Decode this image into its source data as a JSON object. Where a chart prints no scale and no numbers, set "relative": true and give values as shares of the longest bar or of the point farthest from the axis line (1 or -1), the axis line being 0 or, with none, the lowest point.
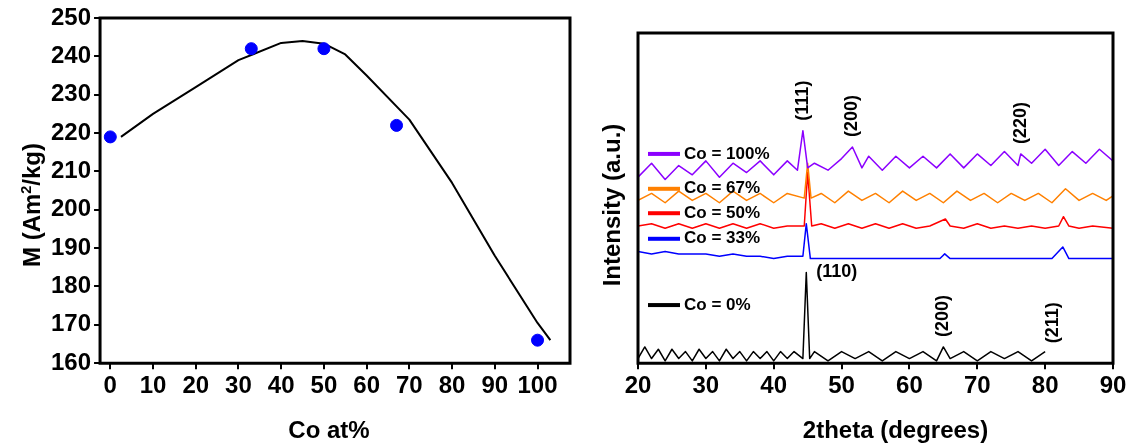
{
  "chart_data": [
    {
      "type": "scatter",
      "xlabel": "Co at%",
      "ylabel": "M (Am$^{2}$/kg)",
      "xlim": [
        -2.4,
        107.6
      ],
      "xticks": [
        0,
        10,
        20,
        30,
        40,
        50,
        60,
        70,
        80,
        90,
        100
      ],
      "ylim": [
        160,
        250
      ],
      "yticks": [
        160,
        170,
        180,
        190,
        200,
        210,
        220,
        230,
        240,
        250
      ],
      "series": [
        {
          "color": "#0000ff",
          "marker": "circle",
          "x": [
            0,
            33,
            50,
            67,
            100
          ],
          "values": [
            219,
            242,
            242,
            222,
            166
          ]
        },
        {
          "type": "line",
          "color": "#000000",
          "x": [
            2.5,
            10,
            20,
            30,
            40,
            45,
            50,
            55,
            60,
            70,
            80,
            90,
            100,
            103
          ],
          "values": [
            219,
            225,
            232,
            239,
            243.5,
            244,
            243.3,
            240.5,
            235,
            223.5,
            207,
            188,
            170.5,
            166
          ]
        }
      ]
    },
    {
      "type": "line",
      "relative": true,
      "xlabel": "2theta (degrees)",
      "ylabel": "Intensity (a.u.)",
      "legend": "left",
      "tick_labels": "x",
      "xlim": [
        20,
        90
      ],
      "xticks": [
        20,
        30,
        40,
        50,
        60,
        70,
        80,
        90
      ],
      "annotations": [
        {
          "text": "(111)",
          "x": 44.3,
          "y": 1.0
        },
        {
          "text": "(200)",
          "x": 51.6,
          "y": 0.93
        },
        {
          "text": "(220)",
          "x": 76.4,
          "y": 0.9
        },
        {
          "text": "(110)",
          "x": 44.8,
          "y": 0.39
        },
        {
          "text": "(200)",
          "x": 65,
          "y": 0.07
        },
        "(211)"
      ],
      "series": [
        {
          "name": "Co = 100%",
          "color": "#8b00ff",
          "x": [
            20,
            22,
            24,
            26,
            28,
            30,
            32,
            34,
            36,
            38,
            40,
            42,
            43.5,
            44.3,
            45,
            46,
            48,
            50,
            51.6,
            53,
            54,
            56,
            58,
            60,
            62,
            64,
            66,
            68,
            70,
            72,
            74,
            76,
            76.4,
            78,
            80,
            82,
            84,
            86,
            88,
            90
          ],
          "values": [
            0.8,
            0.86,
            0.79,
            0.85,
            0.81,
            0.87,
            0.8,
            0.86,
            0.82,
            0.87,
            0.81,
            0.87,
            0.83,
            1.0,
            0.84,
            0.86,
            0.83,
            0.88,
            0.93,
            0.84,
            0.89,
            0.83,
            0.89,
            0.84,
            0.89,
            0.84,
            0.9,
            0.84,
            0.9,
            0.85,
            0.91,
            0.85,
            0.9,
            0.86,
            0.92,
            0.85,
            0.91,
            0.86,
            0.92,
            0.87
          ]
        },
        {
          "name": "Co = 67%",
          "color": "#ff8000",
          "x": [
            20,
            22,
            24,
            26,
            28,
            30,
            32,
            34,
            36,
            38,
            40,
            42,
            44.5,
            45,
            45.5,
            47,
            49,
            51,
            53,
            55,
            57,
            59,
            61,
            63,
            65,
            67,
            69,
            71,
            73,
            75,
            77,
            79,
            81,
            83,
            85,
            87,
            89,
            90
          ],
          "values": [
            0.7,
            0.73,
            0.69,
            0.74,
            0.7,
            0.73,
            0.69,
            0.74,
            0.7,
            0.73,
            0.69,
            0.73,
            0.71,
            0.86,
            0.71,
            0.73,
            0.69,
            0.74,
            0.7,
            0.73,
            0.69,
            0.74,
            0.7,
            0.73,
            0.69,
            0.74,
            0.7,
            0.73,
            0.69,
            0.73,
            0.7,
            0.73,
            0.69,
            0.75,
            0.7,
            0.73,
            0.7,
            0.72
          ]
        },
        {
          "name": "Co = 50%",
          "color": "#ff0000",
          "x": [
            20,
            22,
            24,
            26,
            28,
            30,
            32,
            34,
            36,
            38,
            40,
            42,
            44.5,
            45,
            45.6,
            47,
            49,
            51,
            53,
            55,
            57,
            59,
            61,
            63,
            65.3,
            66,
            68,
            70,
            72,
            74,
            76,
            78,
            80,
            82,
            82.7,
            83.5,
            85,
            87,
            90
          ],
          "values": [
            0.59,
            0.6,
            0.58,
            0.6,
            0.58,
            0.6,
            0.58,
            0.6,
            0.58,
            0.6,
            0.58,
            0.59,
            0.59,
            0.82,
            0.59,
            0.6,
            0.58,
            0.6,
            0.58,
            0.6,
            0.58,
            0.6,
            0.58,
            0.59,
            0.62,
            0.59,
            0.58,
            0.6,
            0.58,
            0.59,
            0.58,
            0.59,
            0.58,
            0.59,
            0.63,
            0.59,
            0.58,
            0.59,
            0.58
          ]
        },
        {
          "name": "Co = 33%",
          "color": "#0000ff",
          "x": [
            20,
            22,
            24,
            26,
            28,
            30,
            32,
            34,
            36,
            38,
            40,
            42,
            44.3,
            44.8,
            45.4,
            47,
            50,
            53,
            56,
            59,
            62,
            64.5,
            65.2,
            66,
            69,
            72,
            75,
            78,
            81,
            82.6,
            83.5,
            86,
            90
          ],
          "values": [
            0.48,
            0.47,
            0.48,
            0.47,
            0.47,
            0.47,
            0.46,
            0.47,
            0.46,
            0.46,
            0.45,
            0.46,
            0.46,
            0.6,
            0.45,
            0.45,
            0.45,
            0.45,
            0.45,
            0.45,
            0.45,
            0.45,
            0.47,
            0.45,
            0.45,
            0.45,
            0.45,
            0.45,
            0.45,
            0.5,
            0.45,
            0.45,
            0.45
          ]
        },
        {
          "name": "Co = 0%",
          "color": "#000000",
          "x": [
            20,
            21,
            22,
            23,
            24,
            25,
            26,
            27,
            28,
            29,
            30,
            31,
            32,
            33,
            34,
            35,
            36,
            37,
            38,
            39,
            40,
            41,
            42,
            43,
            44.3,
            44.8,
            45.3,
            46,
            48,
            50,
            52,
            54,
            56,
            58,
            60,
            62,
            64,
            65,
            66,
            68,
            70,
            72,
            74,
            76,
            78,
            80
          ],
          "values": [
            0.02,
            0.07,
            0.02,
            0.06,
            0.01,
            0.06,
            0.02,
            0.05,
            0.01,
            0.06,
            0.02,
            0.05,
            0.01,
            0.06,
            0.02,
            0.05,
            0.01,
            0.05,
            0.02,
            0.05,
            0.01,
            0.05,
            0.02,
            0.05,
            0.02,
            0.39,
            0.02,
            0.05,
            0.01,
            0.05,
            0.02,
            0.05,
            0.01,
            0.05,
            0.02,
            0.05,
            0.01,
            0.07,
            0.02,
            0.05,
            0.01,
            0.05,
            0.02,
            0.05,
            0.01,
            0.05
          ]
        }
      ]
    }
  ]
}
